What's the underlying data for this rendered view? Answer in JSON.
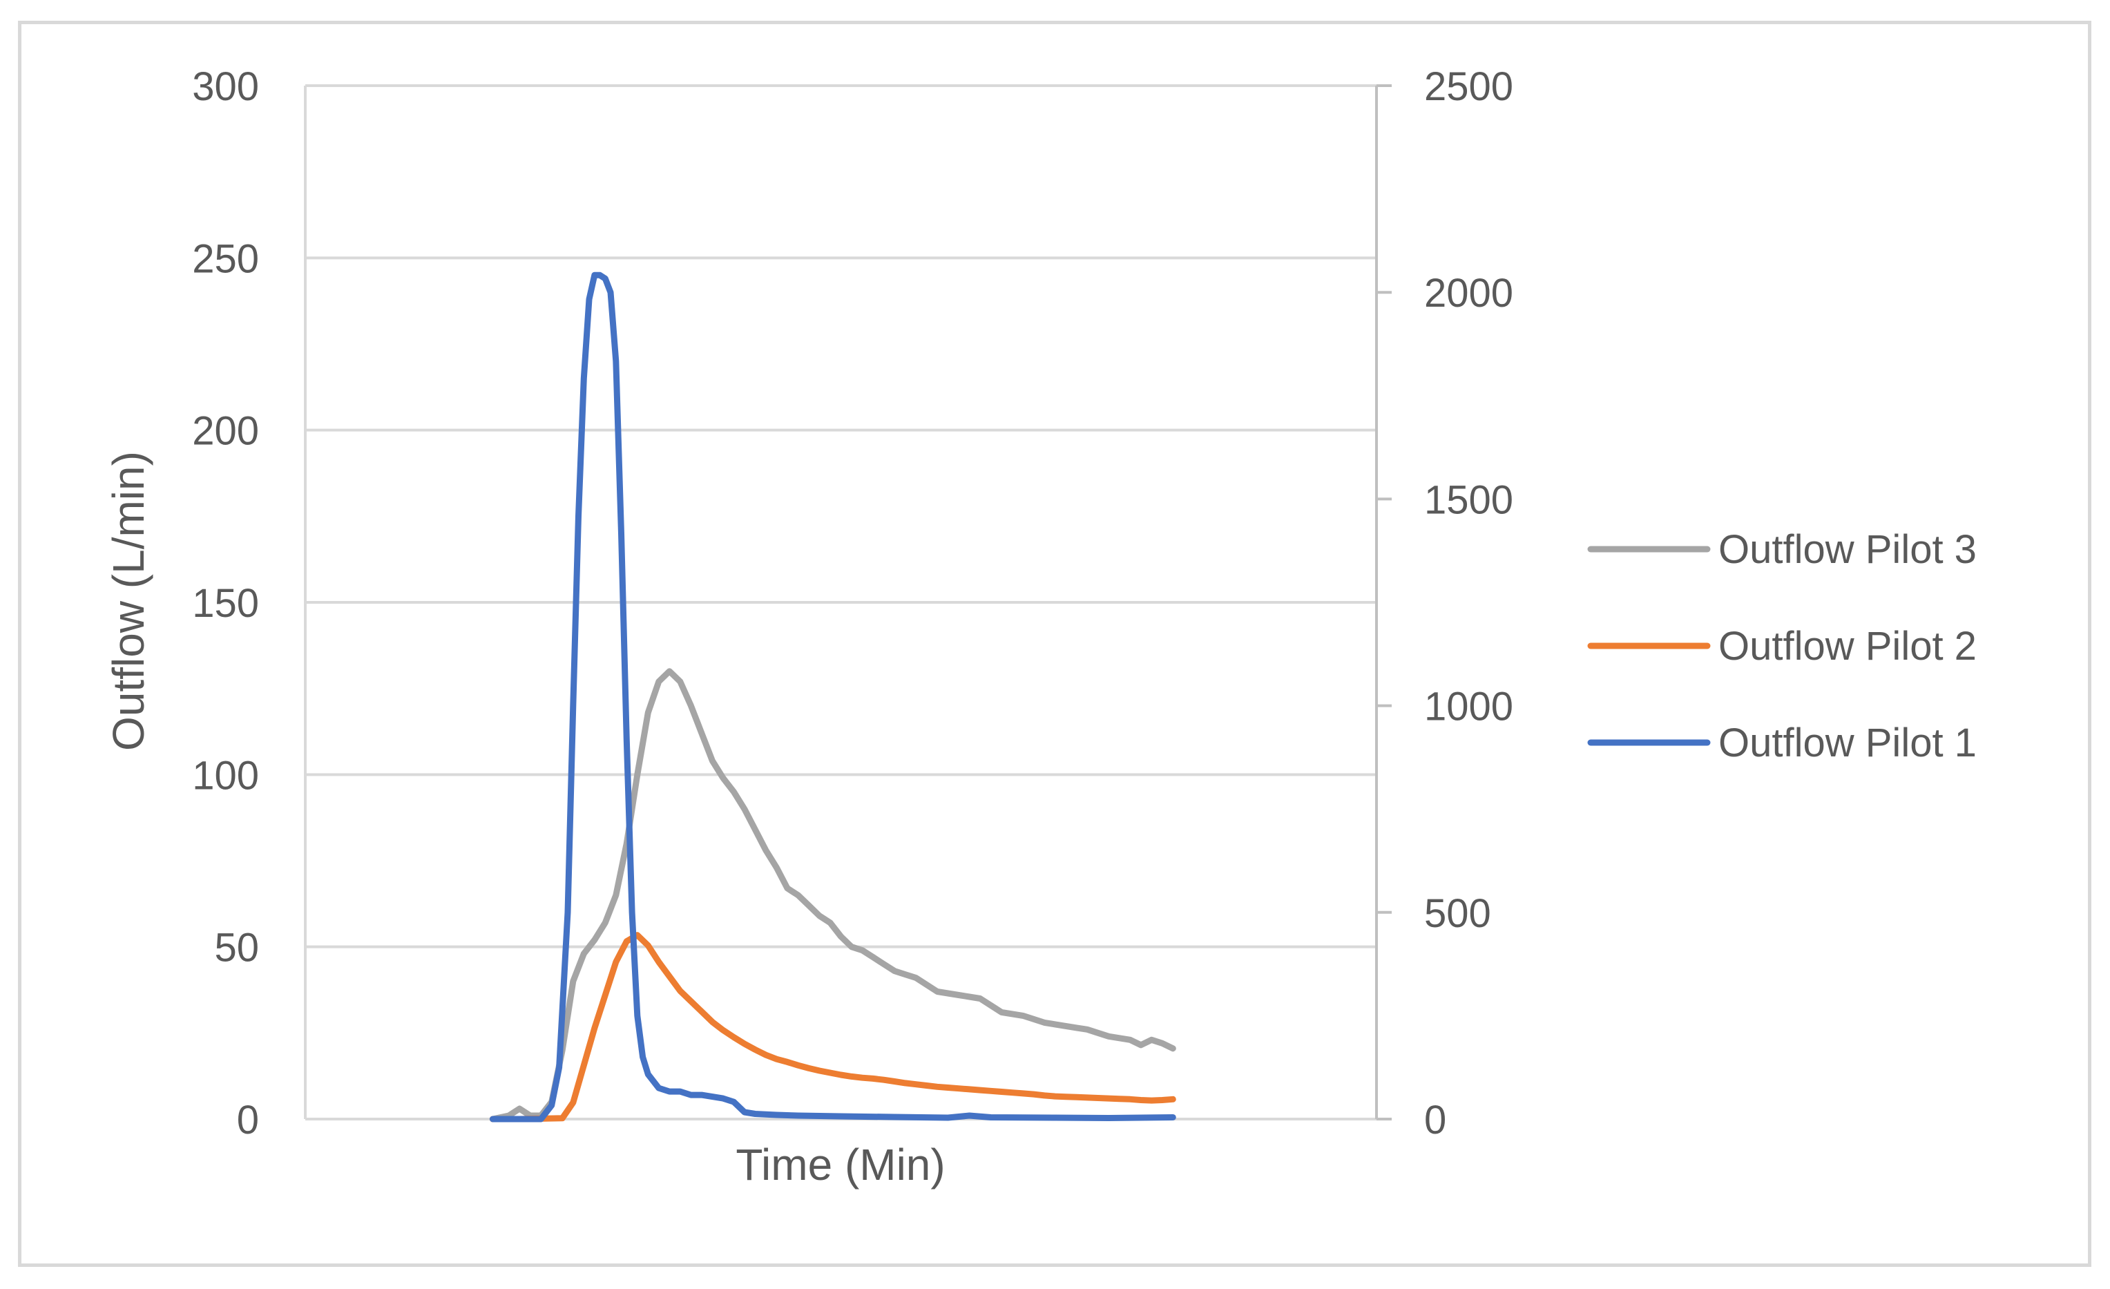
{
  "chart_data": {
    "type": "line",
    "title": "",
    "xlabel": "Time (Min)",
    "ylabel": "Outflow (L/min)",
    "ylim": [
      0,
      300
    ],
    "y2lim": [
      0,
      2500
    ],
    "y_ticks": [
      "0",
      "50",
      "100",
      "150",
      "200",
      "250",
      "300"
    ],
    "y2_ticks": [
      "0",
      "500",
      "1000",
      "1500",
      "2000",
      "2500"
    ],
    "grid": true,
    "legend_position": "right",
    "xlim": [
      0,
      100
    ],
    "series": [
      {
        "name": "Outflow Pilot 3",
        "axis": "left",
        "color": "#a5a5a5",
        "points": [
          [
            17.5,
            0
          ],
          [
            19,
            1
          ],
          [
            20,
            3
          ],
          [
            21,
            1
          ],
          [
            22,
            1
          ],
          [
            23,
            5
          ],
          [
            24,
            20
          ],
          [
            25,
            40
          ],
          [
            26,
            48
          ],
          [
            27,
            52
          ],
          [
            28,
            57
          ],
          [
            29,
            65
          ],
          [
            30,
            80
          ],
          [
            31,
            100
          ],
          [
            32,
            118
          ],
          [
            33,
            127
          ],
          [
            34,
            130
          ],
          [
            35,
            127
          ],
          [
            36,
            120
          ],
          [
            37,
            112
          ],
          [
            38,
            104
          ],
          [
            39,
            99
          ],
          [
            40,
            95
          ],
          [
            41,
            90
          ],
          [
            42,
            84
          ],
          [
            43,
            78
          ],
          [
            44,
            73
          ],
          [
            45,
            67
          ],
          [
            46,
            65
          ],
          [
            47,
            62
          ],
          [
            48,
            59
          ],
          [
            49,
            57
          ],
          [
            50,
            53
          ],
          [
            51,
            50
          ],
          [
            52,
            49
          ],
          [
            53,
            47
          ],
          [
            54,
            45
          ],
          [
            55,
            43
          ],
          [
            56,
            42
          ],
          [
            57,
            41
          ],
          [
            58,
            39
          ],
          [
            59,
            37
          ],
          [
            60,
            36.5
          ],
          [
            61,
            36
          ],
          [
            62,
            35.5
          ],
          [
            63,
            35
          ],
          [
            64,
            33
          ],
          [
            65,
            31
          ],
          [
            66,
            30.5
          ],
          [
            67,
            30
          ],
          [
            68,
            29
          ],
          [
            69,
            28
          ],
          [
            70,
            27.5
          ],
          [
            71,
            27
          ],
          [
            72,
            26.5
          ],
          [
            73,
            26
          ],
          [
            74,
            25
          ],
          [
            75,
            24
          ],
          [
            76,
            23.5
          ],
          [
            77,
            23
          ],
          [
            78,
            21.5
          ],
          [
            79,
            23
          ],
          [
            80,
            22
          ],
          [
            81,
            20.5
          ]
        ]
      },
      {
        "name": "Outflow Pilot 2",
        "axis": "right",
        "color": "#ed7d31",
        "points": [
          [
            17.5,
            0
          ],
          [
            20,
            0
          ],
          [
            24,
            2
          ],
          [
            25,
            40
          ],
          [
            26,
            130
          ],
          [
            27,
            220
          ],
          [
            28,
            300
          ],
          [
            29,
            380
          ],
          [
            30,
            430
          ],
          [
            31,
            445
          ],
          [
            32,
            420
          ],
          [
            33,
            380
          ],
          [
            34,
            345
          ],
          [
            35,
            310
          ],
          [
            36,
            285
          ],
          [
            37,
            260
          ],
          [
            38,
            235
          ],
          [
            39,
            215
          ],
          [
            40,
            198
          ],
          [
            41,
            182
          ],
          [
            42,
            168
          ],
          [
            43,
            155
          ],
          [
            44,
            145
          ],
          [
            45,
            138
          ],
          [
            46,
            130
          ],
          [
            47,
            123
          ],
          [
            48,
            117
          ],
          [
            49,
            112
          ],
          [
            50,
            107
          ],
          [
            51,
            103
          ],
          [
            52,
            100
          ],
          [
            53,
            98
          ],
          [
            54,
            95
          ],
          [
            55,
            91
          ],
          [
            56,
            87
          ],
          [
            57,
            84
          ],
          [
            58,
            81
          ],
          [
            59,
            78
          ],
          [
            60,
            76
          ],
          [
            61,
            74
          ],
          [
            62,
            72
          ],
          [
            63,
            70
          ],
          [
            64,
            68
          ],
          [
            65,
            66
          ],
          [
            66,
            64
          ],
          [
            67,
            62
          ],
          [
            68,
            60
          ],
          [
            69,
            57
          ],
          [
            70,
            55
          ],
          [
            71,
            54
          ],
          [
            72,
            53
          ],
          [
            73,
            52
          ],
          [
            74,
            51
          ],
          [
            75,
            50
          ],
          [
            76,
            49
          ],
          [
            77,
            48
          ],
          [
            78,
            46
          ],
          [
            79,
            45
          ],
          [
            80,
            46
          ],
          [
            81,
            48
          ]
        ]
      },
      {
        "name": "Outflow Pilot 1",
        "axis": "left",
        "color": "#4472c4",
        "points": [
          [
            17.5,
            0
          ],
          [
            22,
            0
          ],
          [
            23,
            4
          ],
          [
            23.7,
            15
          ],
          [
            24.5,
            60
          ],
          [
            25,
            120
          ],
          [
            25.5,
            175
          ],
          [
            26,
            215
          ],
          [
            26.5,
            238
          ],
          [
            27,
            245
          ],
          [
            27.5,
            245
          ],
          [
            28,
            244
          ],
          [
            28.5,
            240
          ],
          [
            29,
            220
          ],
          [
            29.5,
            170
          ],
          [
            30,
            110
          ],
          [
            30.5,
            60
          ],
          [
            31,
            30
          ],
          [
            31.5,
            18
          ],
          [
            32,
            13
          ],
          [
            33,
            9
          ],
          [
            34,
            8
          ],
          [
            35,
            8
          ],
          [
            36,
            7
          ],
          [
            37,
            7
          ],
          [
            38,
            6.5
          ],
          [
            39,
            6
          ],
          [
            40,
            5
          ],
          [
            41,
            2
          ],
          [
            42,
            1.5
          ],
          [
            44,
            1.2
          ],
          [
            46,
            1
          ],
          [
            50,
            0.8
          ],
          [
            55,
            0.6
          ],
          [
            60,
            0.4
          ],
          [
            62,
            1
          ],
          [
            64,
            0.5
          ],
          [
            70,
            0.4
          ],
          [
            75,
            0.3
          ],
          [
            81,
            0.5
          ]
        ]
      }
    ]
  }
}
